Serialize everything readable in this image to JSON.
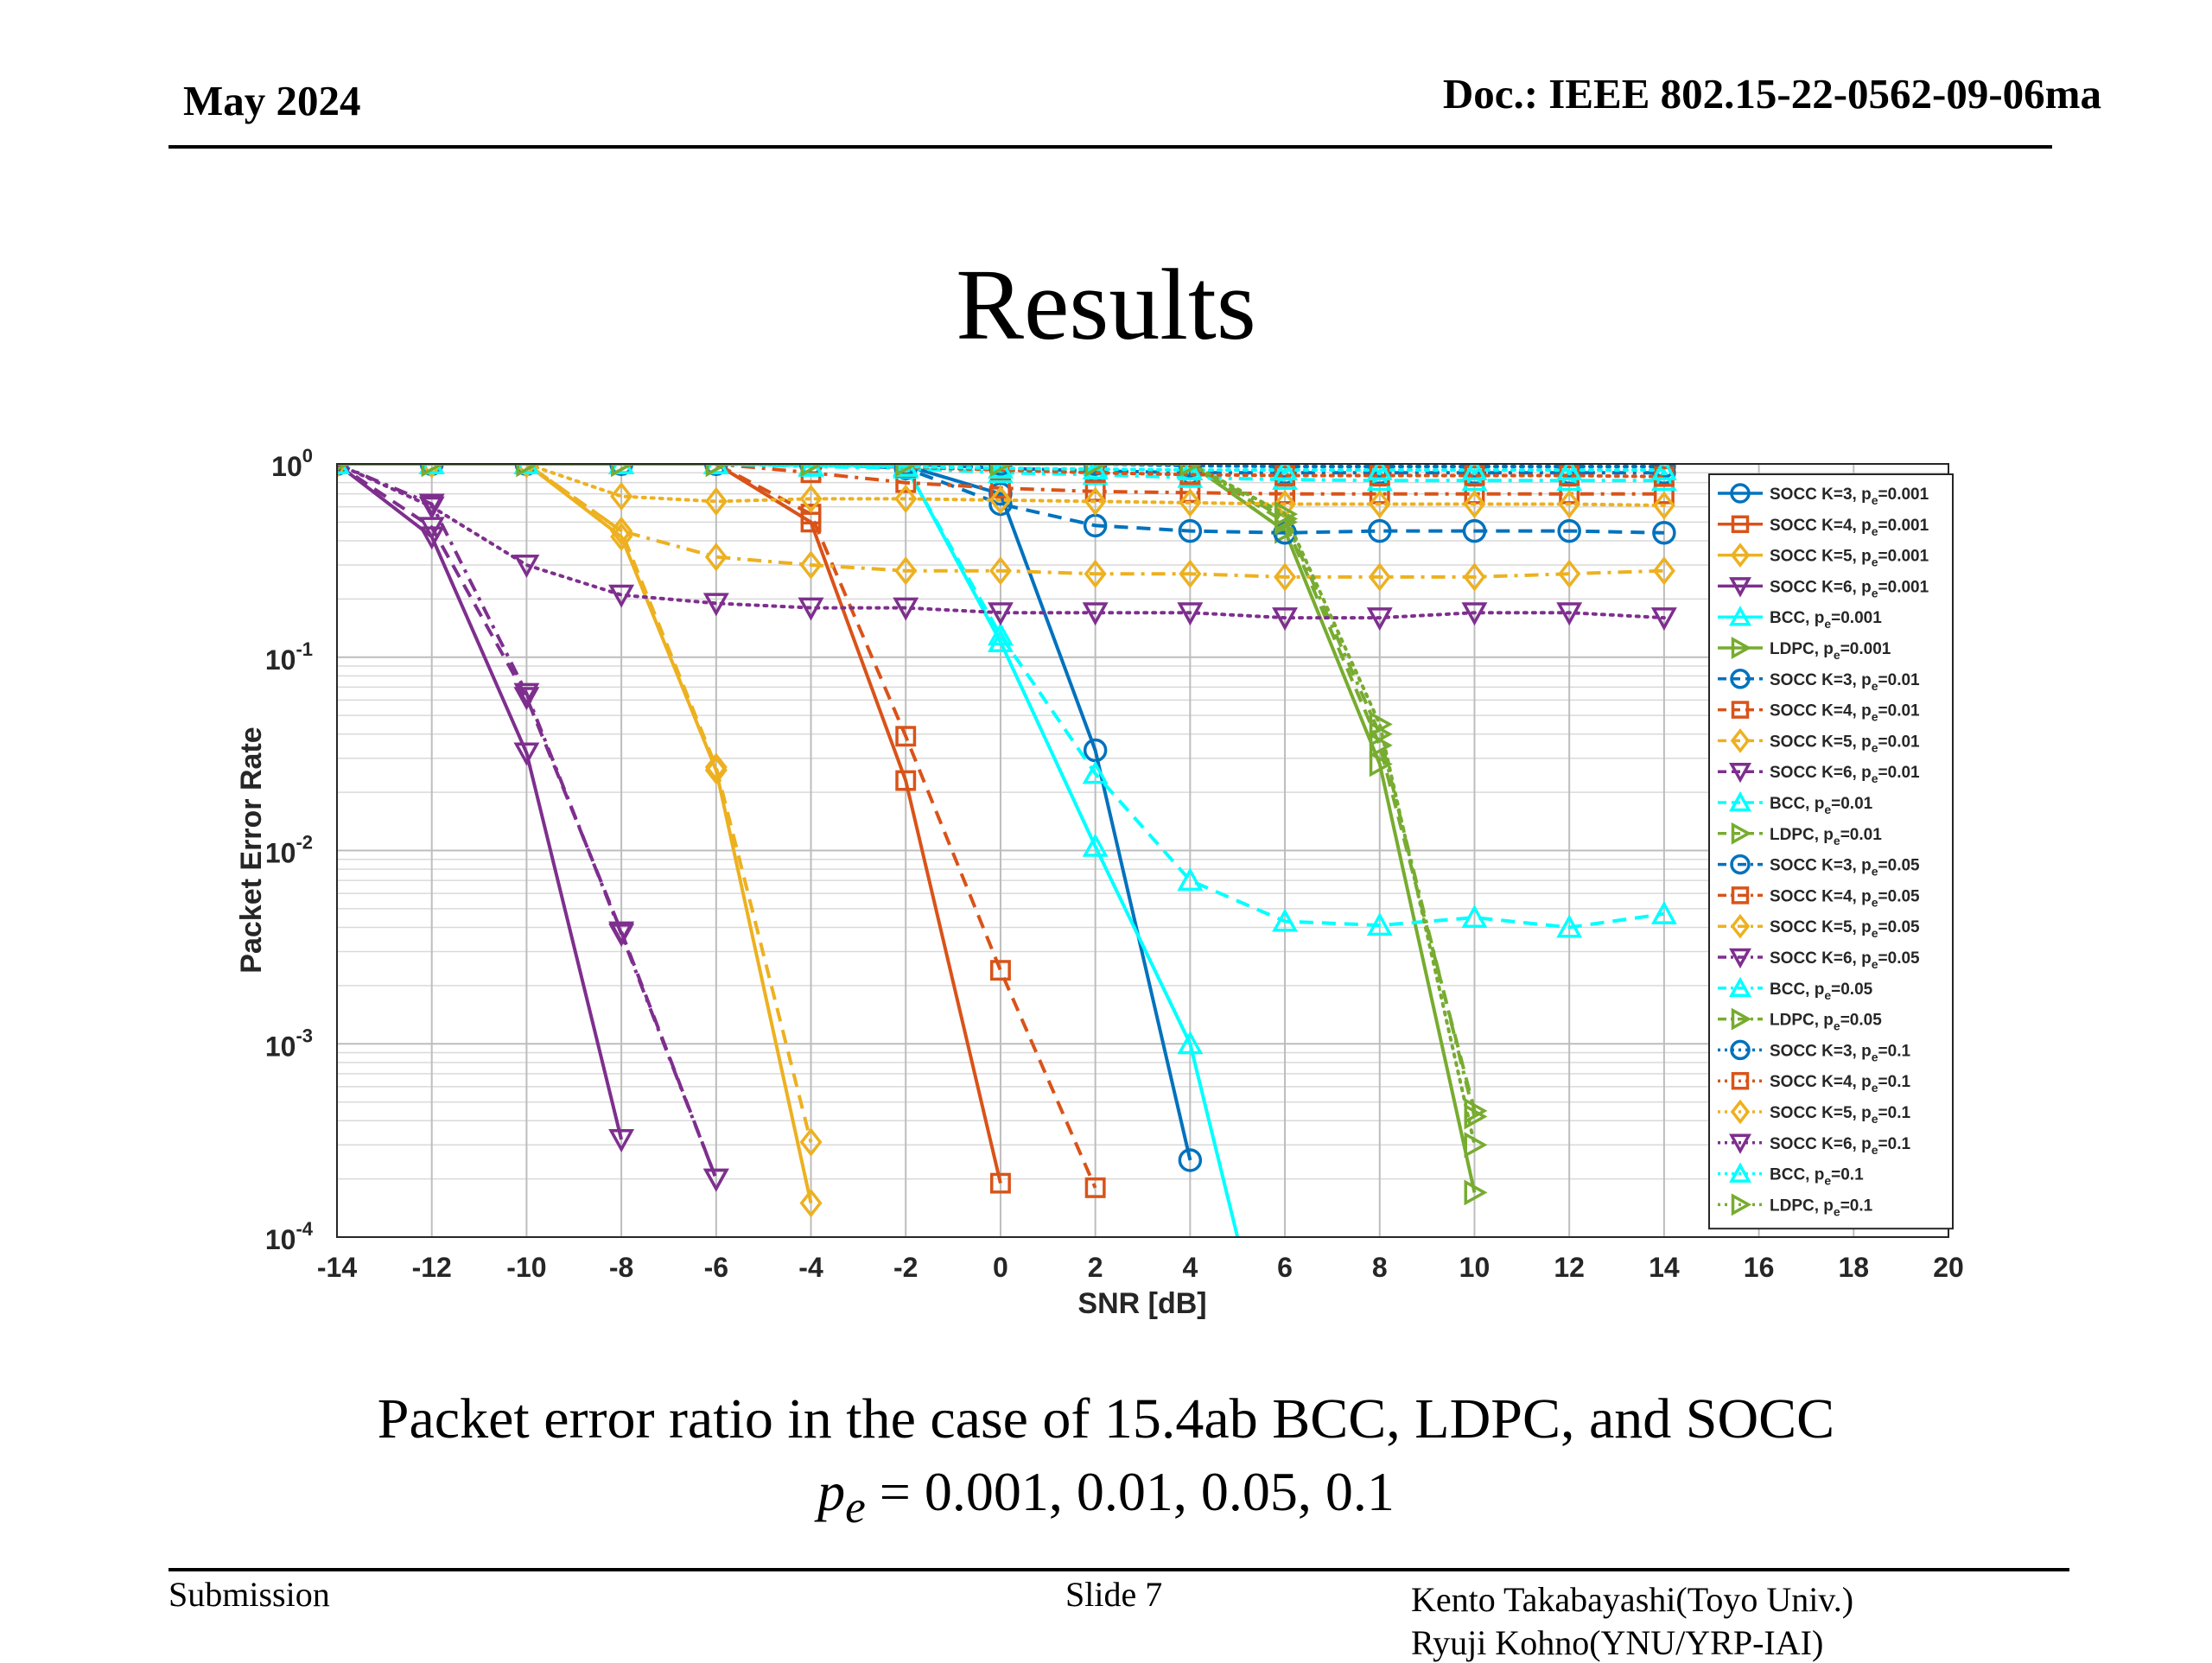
{
  "header": {
    "date": "May 2024",
    "doc": "Doc.: IEEE 802.15-22-0562-09-06ma"
  },
  "slide_title": "Results",
  "caption": {
    "line1": "Packet error ratio in the case of 15.4ab BCC, LDPC, and SOCC",
    "line2_var": "p",
    "line2_sub": "e",
    "line2_rest": " = 0.001, 0.01, 0.05, 0.1"
  },
  "footer": {
    "left": "Submission",
    "center": "Slide 7",
    "right_line1": "Kento Takabayashi(Toyo Univ.)",
    "right_line2": "Ryuji Kohno(YNU/YRP-IAI)"
  },
  "chart_data": {
    "type": "line",
    "xlabel": "SNR [dB]",
    "ylabel": "Packet Error Rate",
    "xlim": [
      -14,
      20
    ],
    "ylim": [
      0.0001,
      1
    ],
    "yscale": "log",
    "xticks": [
      "-14",
      "-12",
      "-10",
      "-8",
      "-6",
      "-4",
      "-2",
      "0",
      "2",
      "4",
      "6",
      "8",
      "10",
      "12",
      "14",
      "16",
      "18",
      "20"
    ],
    "yticks": [
      {
        "base": "10",
        "exp": "0"
      },
      {
        "base": "10",
        "exp": "-1"
      },
      {
        "base": "10",
        "exp": "-2"
      },
      {
        "base": "10",
        "exp": "-3"
      },
      {
        "base": "10",
        "exp": "-4"
      }
    ],
    "grid": true,
    "legend_position": "right inside",
    "colors": {
      "SOCC K=3": "#0072BD",
      "SOCC K=4": "#D95319",
      "SOCC K=5": "#EDB120",
      "SOCC K=6": "#7E2F8E",
      "BCC": "#00FFFF",
      "LDPC": "#77AC30"
    },
    "series": [
      {
        "legend": {
          "prefix": "SOCC K=3, p",
          "sub": "e",
          "suffix": "=0.001"
        },
        "color": "#0072BD",
        "marker": "circle",
        "dash": "solid",
        "x": [
          -14,
          -12,
          -10,
          -8,
          -6,
          -4,
          -2,
          0,
          2,
          4
        ],
        "y": [
          1,
          1,
          1,
          1,
          1,
          1,
          0.98,
          0.7,
          0.033,
          0.00025
        ]
      },
      {
        "legend": {
          "prefix": "SOCC K=4, p",
          "sub": "e",
          "suffix": "=0.001"
        },
        "color": "#D95319",
        "marker": "square",
        "dash": "solid",
        "x": [
          -14,
          -12,
          -10,
          -8,
          -6,
          -4,
          -2,
          0
        ],
        "y": [
          1,
          1,
          1,
          1,
          1,
          0.5,
          0.023,
          0.00019
        ]
      },
      {
        "legend": {
          "prefix": "SOCC K=5, p",
          "sub": "e",
          "suffix": "=0.001"
        },
        "color": "#EDB120",
        "marker": "diamond",
        "dash": "solid",
        "x": [
          -14,
          -12,
          -10,
          -8,
          -6,
          -4
        ],
        "y": [
          1,
          1,
          1,
          0.42,
          0.026,
          0.00015
        ]
      },
      {
        "legend": {
          "prefix": "SOCC K=6, p",
          "sub": "e",
          "suffix": "=0.001"
        },
        "color": "#7E2F8E",
        "marker": "triangle-down",
        "dash": "solid",
        "x": [
          -14,
          -12,
          -10,
          -8
        ],
        "y": [
          1,
          0.42,
          0.032,
          0.00032
        ]
      },
      {
        "legend": {
          "prefix": "BCC, p",
          "sub": "e",
          "suffix": "=0.001"
        },
        "color": "#00FFFF",
        "marker": "triangle-up",
        "dash": "solid",
        "x": [
          -14,
          -12,
          -10,
          -8,
          -6,
          -2,
          0,
          2,
          4,
          5
        ],
        "y": [
          1,
          1,
          1,
          1,
          1,
          0.98,
          0.12,
          0.0105,
          0.001,
          0.0001
        ]
      },
      {
        "legend": {
          "prefix": "LDPC, p",
          "sub": "e",
          "suffix": "=0.001"
        },
        "color": "#77AC30",
        "marker": "triangle-right",
        "dash": "solid",
        "x": [
          -14,
          -12,
          -10,
          -8,
          -6,
          -4,
          -2,
          0,
          2,
          4,
          6,
          8,
          10
        ],
        "y": [
          1,
          1,
          1,
          1,
          1,
          1,
          1,
          1,
          1,
          1,
          0.45,
          0.028,
          0.00017
        ]
      },
      {
        "legend": {
          "prefix": "SOCC K=3, p",
          "sub": "e",
          "suffix": "=0.01"
        },
        "color": "#0072BD",
        "marker": "circle",
        "dash": "dashed",
        "x": [
          -14,
          -12,
          -10,
          -8,
          -6,
          -4,
          -2,
          0,
          2,
          4,
          6,
          8,
          10,
          12,
          14
        ],
        "y": [
          1,
          1,
          1,
          1,
          1,
          1,
          0.95,
          0.62,
          0.48,
          0.45,
          0.44,
          0.45,
          0.45,
          0.45,
          0.44
        ]
      },
      {
        "legend": {
          "prefix": "SOCC K=4, p",
          "sub": "e",
          "suffix": "=0.01"
        },
        "color": "#D95319",
        "marker": "square",
        "dash": "dashed",
        "x": [
          -14,
          -12,
          -10,
          -8,
          -6,
          -4,
          -2,
          0,
          2
        ],
        "y": [
          1,
          1,
          1,
          1,
          1,
          0.55,
          0.039,
          0.0024,
          0.00018
        ]
      },
      {
        "legend": {
          "prefix": "SOCC K=5, p",
          "sub": "e",
          "suffix": "=0.01"
        },
        "color": "#EDB120",
        "marker": "diamond",
        "dash": "dashed",
        "x": [
          -14,
          -12,
          -10,
          -8,
          -6,
          -4
        ],
        "y": [
          1,
          1,
          1,
          0.45,
          0.027,
          0.00031
        ]
      },
      {
        "legend": {
          "prefix": "SOCC K=6, p",
          "sub": "e",
          "suffix": "=0.01"
        },
        "color": "#7E2F8E",
        "marker": "triangle-down",
        "dash": "dashed",
        "x": [
          -14,
          -12,
          -10,
          -8,
          -6
        ],
        "y": [
          1,
          0.47,
          0.062,
          0.0038,
          0.0002
        ]
      },
      {
        "legend": {
          "prefix": "BCC, p",
          "sub": "e",
          "suffix": "=0.01"
        },
        "color": "#00FFFF",
        "marker": "triangle-up",
        "dash": "dashed",
        "x": [
          -14,
          -12,
          -10,
          -8,
          -6,
          -2,
          0,
          2,
          4,
          6,
          8,
          10,
          12,
          14
        ],
        "y": [
          1,
          1,
          1,
          1,
          1,
          0.97,
          0.13,
          0.025,
          0.007,
          0.0043,
          0.0041,
          0.0045,
          0.004,
          0.0047
        ]
      },
      {
        "legend": {
          "prefix": "LDPC, p",
          "sub": "e",
          "suffix": "=0.01"
        },
        "color": "#77AC30",
        "marker": "triangle-right",
        "dash": "dashed",
        "x": [
          -14,
          -12,
          -10,
          -8,
          -6,
          -4,
          -2,
          0,
          2,
          4,
          6,
          8,
          10
        ],
        "y": [
          1,
          1,
          1,
          1,
          1,
          1,
          1,
          1,
          1,
          1,
          0.5,
          0.035,
          0.00045
        ]
      },
      {
        "legend": {
          "prefix": "SOCC K=3, p",
          "sub": "e",
          "suffix": "=0.05"
        },
        "color": "#0072BD",
        "marker": "circle",
        "dash": "dashdot",
        "x": [
          -14,
          -12,
          -10,
          -8,
          -6,
          -4,
          -2,
          0,
          2,
          4,
          6,
          8,
          10,
          12,
          14
        ],
        "y": [
          1,
          1,
          1,
          1,
          1,
          1,
          1,
          0.95,
          0.92,
          0.9,
          0.9,
          0.9,
          0.9,
          0.9,
          0.9
        ]
      },
      {
        "legend": {
          "prefix": "SOCC K=4, p",
          "sub": "e",
          "suffix": "=0.05"
        },
        "color": "#D95319",
        "marker": "square",
        "dash": "dashdot",
        "x": [
          -14,
          -12,
          -10,
          -8,
          -6,
          -4,
          -2,
          0,
          2,
          4,
          6,
          8,
          10,
          12,
          14
        ],
        "y": [
          1,
          1,
          1,
          1,
          1,
          0.9,
          0.8,
          0.75,
          0.72,
          0.71,
          0.7,
          0.7,
          0.7,
          0.7,
          0.7
        ]
      },
      {
        "legend": {
          "prefix": "SOCC K=5, p",
          "sub": "e",
          "suffix": "=0.05"
        },
        "color": "#EDB120",
        "marker": "diamond",
        "dash": "dashdot",
        "x": [
          -14,
          -12,
          -10,
          -8,
          -6,
          -4,
          -2,
          0,
          2,
          4,
          6,
          8,
          10,
          12,
          14
        ],
        "y": [
          1,
          1,
          1,
          0.45,
          0.33,
          0.3,
          0.28,
          0.28,
          0.27,
          0.27,
          0.26,
          0.26,
          0.26,
          0.27,
          0.28
        ]
      },
      {
        "legend": {
          "prefix": "SOCC K=6, p",
          "sub": "e",
          "suffix": "=0.05"
        },
        "color": "#7E2F8E",
        "marker": "triangle-down",
        "dash": "dashdot",
        "x": [
          -14,
          -12,
          -10,
          -8,
          -6
        ],
        "y": [
          1,
          0.62,
          0.065,
          0.0037,
          0.0002
        ]
      },
      {
        "legend": {
          "prefix": "BCC, p",
          "sub": "e",
          "suffix": "=0.05"
        },
        "color": "#00FFFF",
        "marker": "triangle-up",
        "dash": "dashdot",
        "x": [
          -14,
          -12,
          -10,
          -8,
          -6,
          -4,
          -2,
          0,
          2,
          4,
          6,
          8,
          10,
          12,
          14
        ],
        "y": [
          1,
          1,
          1,
          1,
          1,
          0.97,
          0.95,
          0.9,
          0.88,
          0.85,
          0.83,
          0.82,
          0.82,
          0.82,
          0.82
        ]
      },
      {
        "legend": {
          "prefix": "LDPC, p",
          "sub": "e",
          "suffix": "=0.05"
        },
        "color": "#77AC30",
        "marker": "triangle-right",
        "dash": "dashdot",
        "x": [
          -14,
          -12,
          -10,
          -8,
          -6,
          -4,
          -2,
          0,
          2,
          4,
          6,
          8,
          10
        ],
        "y": [
          1,
          1,
          1,
          1,
          1,
          1,
          1,
          1,
          1,
          1,
          0.52,
          0.04,
          0.00042
        ]
      },
      {
        "legend": {
          "prefix": "SOCC K=3, p",
          "sub": "e",
          "suffix": "=0.1"
        },
        "color": "#0072BD",
        "marker": "circle",
        "dash": "dotted",
        "x": [
          -14,
          -12,
          -10,
          -8,
          -6,
          -4,
          -2,
          0,
          2,
          4,
          6,
          8,
          10,
          12,
          14
        ],
        "y": [
          1,
          1,
          1,
          1,
          1,
          1,
          1,
          1,
          1,
          0.98,
          0.97,
          0.97,
          0.97,
          0.97,
          0.97
        ]
      },
      {
        "legend": {
          "prefix": "SOCC K=4, p",
          "sub": "e",
          "suffix": "=0.1"
        },
        "color": "#D95319",
        "marker": "square",
        "dash": "dotted",
        "x": [
          -14,
          -12,
          -10,
          -8,
          -6,
          -4,
          -2,
          0,
          2,
          4,
          6,
          8,
          10,
          12,
          14
        ],
        "y": [
          1,
          1,
          1,
          1,
          1,
          1,
          0.96,
          0.93,
          0.9,
          0.88,
          0.87,
          0.87,
          0.87,
          0.87,
          0.86
        ]
      },
      {
        "legend": {
          "prefix": "SOCC K=5, p",
          "sub": "e",
          "suffix": "=0.1"
        },
        "color": "#EDB120",
        "marker": "diamond",
        "dash": "dotted",
        "x": [
          -14,
          -12,
          -10,
          -8,
          -6,
          -4,
          -2,
          0,
          2,
          4,
          6,
          8,
          10,
          12,
          14
        ],
        "y": [
          1,
          1,
          1,
          0.68,
          0.64,
          0.66,
          0.66,
          0.65,
          0.64,
          0.63,
          0.62,
          0.62,
          0.62,
          0.62,
          0.61
        ]
      },
      {
        "legend": {
          "prefix": "SOCC K=6, p",
          "sub": "e",
          "suffix": "=0.1"
        },
        "color": "#7E2F8E",
        "marker": "triangle-down",
        "dash": "dotted",
        "x": [
          -14,
          -12,
          -10,
          -8,
          -6,
          -4,
          -2,
          0,
          2,
          4,
          6,
          8,
          10,
          12,
          14
        ],
        "y": [
          1,
          0.6,
          0.3,
          0.21,
          0.19,
          0.18,
          0.18,
          0.17,
          0.17,
          0.17,
          0.16,
          0.16,
          0.17,
          0.17,
          0.16
        ]
      },
      {
        "legend": {
          "prefix": "BCC, p",
          "sub": "e",
          "suffix": "=0.1"
        },
        "color": "#00FFFF",
        "marker": "triangle-up",
        "dash": "dotted",
        "x": [
          -14,
          -12,
          -10,
          -8,
          -6,
          -4,
          -2,
          0,
          2,
          4,
          6,
          8,
          10,
          12,
          14
        ],
        "y": [
          1,
          1,
          1,
          1,
          1,
          0.98,
          0.97,
          0.95,
          0.94,
          0.93,
          0.93,
          0.93,
          0.93,
          0.93,
          0.93
        ]
      },
      {
        "legend": {
          "prefix": "LDPC, p",
          "sub": "e",
          "suffix": "=0.1"
        },
        "color": "#77AC30",
        "marker": "triangle-right",
        "dash": "dotted",
        "x": [
          -14,
          -12,
          -10,
          -8,
          -6,
          -4,
          -2,
          0,
          2,
          4,
          6,
          8,
          10
        ],
        "y": [
          1,
          1,
          1,
          1,
          1,
          1,
          1,
          1,
          1,
          1,
          0.55,
          0.045,
          0.0003
        ]
      }
    ]
  }
}
